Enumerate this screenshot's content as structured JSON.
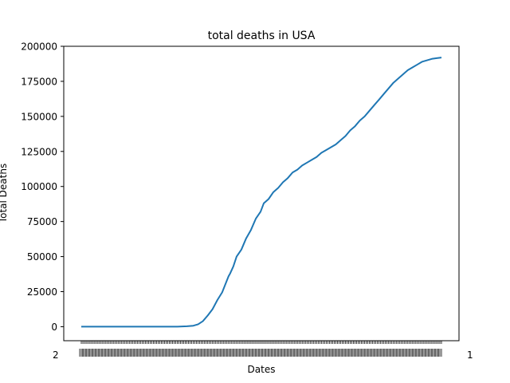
{
  "chart_data": {
    "type": "line",
    "title": "total deaths in USA",
    "xlabel": "Dates",
    "ylabel": "Total Deaths",
    "ylim": [
      -10000,
      200000
    ],
    "yticks": [
      0,
      25000,
      50000,
      75000,
      100000,
      125000,
      150000,
      175000,
      200000
    ],
    "ytick_labels": [
      "0",
      "25000",
      "50000",
      "75000",
      "100000",
      "125000",
      "150000",
      "175000",
      "200000"
    ],
    "x_count": 226,
    "x_first_label_fragment": "2",
    "x_last_label_fragment": "1",
    "grid": false,
    "line_color": "#1f77b4",
    "series": [
      {
        "x_index": [
          0,
          60,
          66,
          70,
          73,
          76,
          79,
          82,
          85,
          88,
          92,
          93,
          95,
          97,
          100,
          103,
          106,
          109,
          112,
          114,
          117,
          120,
          123,
          126,
          129,
          132,
          135,
          138,
          141,
          144,
          147,
          150,
          153,
          156,
          159,
          162,
          165,
          168,
          171,
          174,
          177,
          180,
          183,
          186,
          189,
          192,
          195,
          198,
          201,
          204,
          207,
          210,
          213,
          216,
          219,
          222,
          225
        ],
        "values": [
          0,
          0,
          300,
          700,
          1700,
          4000,
          8000,
          12500,
          19000,
          24500,
          36000,
          38000,
          43000,
          50000,
          55000,
          63000,
          69000,
          77000,
          82000,
          88000,
          91000,
          96000,
          99000,
          103000,
          106000,
          110000,
          112000,
          115000,
          117000,
          119000,
          121000,
          124000,
          126000,
          128000,
          130000,
          133000,
          136000,
          140000,
          143000,
          147000,
          150000,
          154000,
          158000,
          162000,
          166000,
          170000,
          174000,
          177000,
          180000,
          183000,
          185000,
          187000,
          189000,
          190000,
          191000,
          191500,
          192000
        ]
      }
    ]
  }
}
